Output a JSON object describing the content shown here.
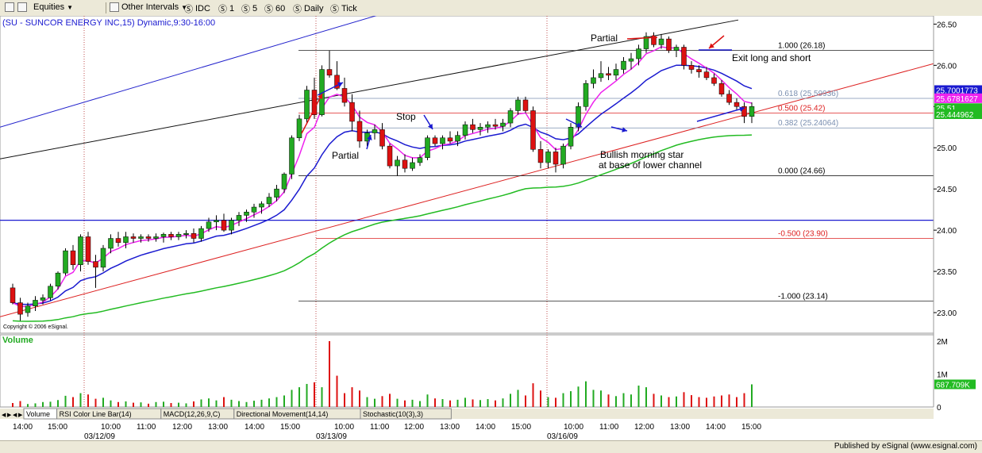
{
  "toolbar": {
    "equities": "Equities",
    "other_intervals": "Other Intervals",
    "idc": "IDC",
    "i1": "1",
    "i5": "5",
    "i60": "60",
    "daily": "Daily",
    "tick": "Tick"
  },
  "chart_title": "(SU - SUNCOR ENERGY INC,15) Dynamic,9:30-16:00",
  "copyright": "Copyright © 2006 eSignal.",
  "volume_label": "Volume",
  "publisher": "Published by eSignal (www.esignal.com)",
  "tabs": [
    "Volume",
    "RSI Color Line Bar(14)",
    "MACD(12,26,9,C)",
    "Directional Movement(14,14)",
    "Stochastic(10(3),3)"
  ],
  "x_time_labels": [
    "14:00",
    "15:00",
    "10:00",
    "11:00",
    "12:00",
    "13:00",
    "14:00",
    "15:00",
    "10:00",
    "11:00",
    "12:00",
    "13:00",
    "14:00",
    "15:00",
    "10:00",
    "11:00",
    "12:00",
    "13:00",
    "14:00",
    "15:00"
  ],
  "x_date_labels": [
    "03/12/09",
    "03/13/09",
    "03/16/09"
  ],
  "price_axis_labels": [
    "26.50",
    "26.00",
    "25.50",
    "25.00",
    "24.50",
    "24.00",
    "23.50",
    "23.00"
  ],
  "price_markers": [
    "25.7001773",
    "25.6781627",
    "25.51",
    "25.444962"
  ],
  "volume_axis_labels": [
    "2M",
    "1M",
    "0"
  ],
  "volume_marker": "687.709K",
  "annotations": [
    "Partial",
    "Partial",
    "Stop",
    "Exit long and short",
    "Bullish morning star",
    "at base of lower channel"
  ],
  "chart_data": {
    "type": "candlestick",
    "title": "(SU - SUNCOR ENERGY INC,15) Dynamic,9:30-16:00",
    "y_range": [
      22.75,
      26.6
    ],
    "volume_range": [
      0,
      2000000
    ],
    "fib_levels": [
      {
        "label": "1.000 (26.18)",
        "value": 26.18
      },
      {
        "label": "0.618 (25.59936)",
        "value": 25.59936
      },
      {
        "label": "0.500 (25.42)",
        "value": 25.42
      },
      {
        "label": "0.382 (25.24064)",
        "value": 25.24064
      },
      {
        "label": "0.000 (24.66)",
        "value": 24.66
      },
      {
        "label": "-0.500 (23.90)",
        "value": 23.9
      },
      {
        "label": "-1.000 (23.14)",
        "value": 23.14
      }
    ],
    "support_line": 24.12,
    "colors": {
      "up": "#22aa22",
      "down": "#dd1111",
      "ma_fast": "#ee22ee",
      "ma_mid": "#1a1ad0",
      "ma_slow": "#22bb22",
      "fib": "#222222",
      "channel_red": "#dd2222",
      "channel_black": "#111111",
      "channel_blue": "#2222cc"
    },
    "candles": [
      [
        23.3,
        23.35,
        23.1,
        23.12
      ],
      [
        23.12,
        23.18,
        22.9,
        22.98
      ],
      [
        23.0,
        23.12,
        22.95,
        23.08
      ],
      [
        23.08,
        23.2,
        23.02,
        23.15
      ],
      [
        23.15,
        23.22,
        23.1,
        23.18
      ],
      [
        23.18,
        23.35,
        23.15,
        23.32
      ],
      [
        23.32,
        23.5,
        23.28,
        23.48
      ],
      [
        23.48,
        23.78,
        23.45,
        23.75
      ],
      [
        23.75,
        23.82,
        23.52,
        23.58
      ],
      [
        23.58,
        23.95,
        23.5,
        23.92
      ],
      [
        23.92,
        23.98,
        23.58,
        23.62
      ],
      [
        23.62,
        23.7,
        23.3,
        23.55
      ],
      [
        23.55,
        23.82,
        23.5,
        23.78
      ],
      [
        23.78,
        23.95,
        23.72,
        23.9
      ],
      [
        23.9,
        23.98,
        23.8,
        23.85
      ],
      [
        23.85,
        23.98,
        23.78,
        23.92
      ],
      [
        23.92,
        23.96,
        23.85,
        23.9
      ],
      [
        23.9,
        23.95,
        23.85,
        23.92
      ],
      [
        23.92,
        23.95,
        23.86,
        23.9
      ],
      [
        23.9,
        23.96,
        23.86,
        23.92
      ],
      [
        23.92,
        23.97,
        23.85,
        23.95
      ],
      [
        23.95,
        23.98,
        23.88,
        23.92
      ],
      [
        23.92,
        23.98,
        23.88,
        23.95
      ],
      [
        23.95,
        24.0,
        23.9,
        23.96
      ],
      [
        23.96,
        24.02,
        23.85,
        23.9
      ],
      [
        23.9,
        24.05,
        23.86,
        24.02
      ],
      [
        24.02,
        24.15,
        23.98,
        24.1
      ],
      [
        24.1,
        24.18,
        24.0,
        24.12
      ],
      [
        24.12,
        24.2,
        23.98,
        24.0
      ],
      [
        24.0,
        24.15,
        23.95,
        24.12
      ],
      [
        24.12,
        24.22,
        24.05,
        24.18
      ],
      [
        24.18,
        24.25,
        24.1,
        24.22
      ],
      [
        24.22,
        24.32,
        24.15,
        24.28
      ],
      [
        24.28,
        24.35,
        24.2,
        24.32
      ],
      [
        24.32,
        24.45,
        24.28,
        24.4
      ],
      [
        24.4,
        24.55,
        24.35,
        24.5
      ],
      [
        24.5,
        24.7,
        24.45,
        24.68
      ],
      [
        24.68,
        25.15,
        24.62,
        25.12
      ],
      [
        25.12,
        25.4,
        25.08,
        25.35
      ],
      [
        25.35,
        25.75,
        25.3,
        25.7
      ],
      [
        25.7,
        25.85,
        25.35,
        25.4
      ],
      [
        25.4,
        26.0,
        25.38,
        25.95
      ],
      [
        25.95,
        26.18,
        25.85,
        25.88
      ],
      [
        25.88,
        26.05,
        25.7,
        25.72
      ],
      [
        25.72,
        25.85,
        25.5,
        25.55
      ],
      [
        25.55,
        25.65,
        25.2,
        25.32
      ],
      [
        25.32,
        25.45,
        25.0,
        25.08
      ],
      [
        25.08,
        25.22,
        25.02,
        25.18
      ],
      [
        25.18,
        25.28,
        25.1,
        25.22
      ],
      [
        25.22,
        25.3,
        24.98,
        25.02
      ],
      [
        25.02,
        25.05,
        24.75,
        24.78
      ],
      [
        24.78,
        24.9,
        24.66,
        24.85
      ],
      [
        24.85,
        24.92,
        24.7,
        24.75
      ],
      [
        24.75,
        24.88,
        24.72,
        24.82
      ],
      [
        24.82,
        24.92,
        24.78,
        24.88
      ],
      [
        24.88,
        25.15,
        24.85,
        25.12
      ],
      [
        25.12,
        25.15,
        25.02,
        25.05
      ],
      [
        25.05,
        25.15,
        24.98,
        25.12
      ],
      [
        25.12,
        25.2,
        25.05,
        25.08
      ],
      [
        25.08,
        25.2,
        25.02,
        25.15
      ],
      [
        25.15,
        25.32,
        25.1,
        25.28
      ],
      [
        25.28,
        25.35,
        25.18,
        25.22
      ],
      [
        25.22,
        25.3,
        25.15,
        25.25
      ],
      [
        25.25,
        25.32,
        25.18,
        25.28
      ],
      [
        25.28,
        25.35,
        25.22,
        25.26
      ],
      [
        25.26,
        25.35,
        25.2,
        25.3
      ],
      [
        25.3,
        25.48,
        25.25,
        25.45
      ],
      [
        25.45,
        25.62,
        25.4,
        25.58
      ],
      [
        25.58,
        25.62,
        25.42,
        25.45
      ],
      [
        25.45,
        25.5,
        24.95,
        24.98
      ],
      [
        24.98,
        25.08,
        24.75,
        24.82
      ],
      [
        24.82,
        24.98,
        24.75,
        24.95
      ],
      [
        24.95,
        25.0,
        24.7,
        24.8
      ],
      [
        24.8,
        25.05,
        24.75,
        25.02
      ],
      [
        25.02,
        25.3,
        24.98,
        25.25
      ],
      [
        25.25,
        25.55,
        25.2,
        25.5
      ],
      [
        25.5,
        25.82,
        25.45,
        25.78
      ],
      [
        25.78,
        25.95,
        25.72,
        25.85
      ],
      [
        25.85,
        26.05,
        25.8,
        25.9
      ],
      [
        25.9,
        25.98,
        25.82,
        25.88
      ],
      [
        25.88,
        26.02,
        25.82,
        25.95
      ],
      [
        25.95,
        26.1,
        25.9,
        26.05
      ],
      [
        26.05,
        26.15,
        25.95,
        26.08
      ],
      [
        26.08,
        26.25,
        26.0,
        26.2
      ],
      [
        26.2,
        26.4,
        26.15,
        26.35
      ],
      [
        26.35,
        26.4,
        26.22,
        26.25
      ],
      [
        26.25,
        26.38,
        26.2,
        26.32
      ],
      [
        26.32,
        26.35,
        26.15,
        26.18
      ],
      [
        26.18,
        26.25,
        26.1,
        26.22
      ],
      [
        26.22,
        26.25,
        25.95,
        26.0
      ],
      [
        26.0,
        26.05,
        25.9,
        25.95
      ],
      [
        25.95,
        26.0,
        25.85,
        25.92
      ],
      [
        25.92,
        25.98,
        25.82,
        25.85
      ],
      [
        25.85,
        25.9,
        25.75,
        25.78
      ],
      [
        25.78,
        25.82,
        25.62,
        25.65
      ],
      [
        25.65,
        25.7,
        25.52,
        25.55
      ],
      [
        25.55,
        25.6,
        25.45,
        25.5
      ],
      [
        25.5,
        25.55,
        25.3,
        25.38
      ],
      [
        25.38,
        25.55,
        25.3,
        25.5
      ]
    ],
    "volume": [
      120000,
      180000,
      90000,
      110000,
      150000,
      160000,
      210000,
      340000,
      300000,
      420000,
      380000,
      250000,
      280000,
      200000,
      150000,
      170000,
      130000,
      140000,
      100000,
      150000,
      160000,
      120000,
      130000,
      110000,
      170000,
      230000,
      260000,
      200000,
      300000,
      220000,
      180000,
      150000,
      190000,
      220000,
      260000,
      300000,
      350000,
      520000,
      600000,
      700000,
      750000,
      600000,
      2000000,
      950000,
      420000,
      600000,
      500000,
      300000,
      250000,
      330000,
      400000,
      250000,
      200000,
      220000,
      180000,
      380000,
      260000,
      240000,
      200000,
      220000,
      280000,
      230000,
      210000,
      240000,
      200000,
      260000,
      400000,
      520000,
      350000,
      720000,
      500000,
      300000,
      280000,
      420000,
      480000,
      620000,
      780000,
      520000,
      500000,
      380000,
      330000,
      420000,
      380000,
      650000,
      600000,
      400000,
      350000,
      300000,
      320000,
      450000,
      360000,
      300000,
      280000,
      320000,
      350000,
      380000,
      300000,
      420000,
      687709
    ]
  }
}
